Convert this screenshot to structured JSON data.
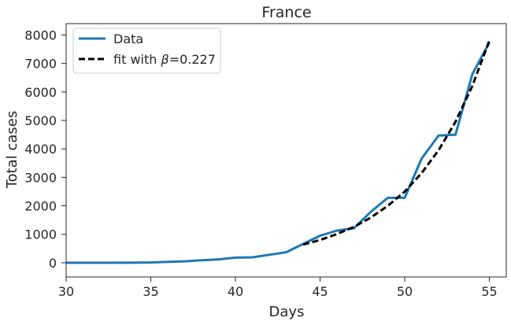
{
  "chart_data": {
    "type": "line",
    "title": "France",
    "xlabel": "Days",
    "ylabel": "Total cases",
    "xlim": [
      30,
      56
    ],
    "ylim": [
      -500,
      8400
    ],
    "xticks": [
      30,
      35,
      40,
      45,
      50,
      55
    ],
    "yticks": [
      0,
      1000,
      2000,
      3000,
      4000,
      5000,
      6000,
      7000,
      8000
    ],
    "grid": false,
    "legend_position": "top-left",
    "series": [
      {
        "name": "Data",
        "style": "solid",
        "color": "#1f77b4",
        "x": [
          30,
          31,
          32,
          33,
          34,
          35,
          36,
          37,
          38,
          39,
          40,
          41,
          42,
          43,
          44,
          45,
          46,
          47,
          48,
          49,
          50,
          51,
          52,
          53,
          54,
          55
        ],
        "y": [
          0,
          0,
          0,
          0,
          5,
          10,
          30,
          50,
          90,
          120,
          180,
          190,
          280,
          370,
          660,
          950,
          1130,
          1210,
          1790,
          2280,
          2280,
          3660,
          4470,
          4500,
          6630,
          7730
        ]
      },
      {
        "name": "fit with β=0.227",
        "label_prefix": "fit with ",
        "label_greek": "β",
        "label_suffix": "=0.227",
        "style": "dashed",
        "color": "#000000",
        "x": [
          44,
          45,
          46,
          47,
          48,
          49,
          50,
          51,
          52,
          53,
          54,
          55
        ],
        "y": [
          640,
          800,
          1010,
          1260,
          1590,
          2000,
          2500,
          3150,
          3950,
          4950,
          6220,
          7800
        ]
      }
    ]
  }
}
